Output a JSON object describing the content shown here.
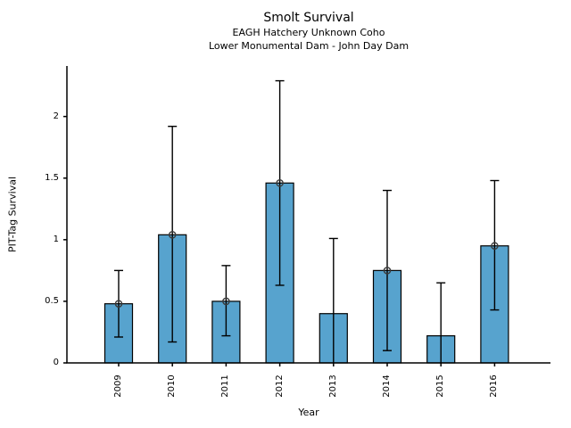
{
  "header": {
    "title": "Smolt Survival",
    "subtitle1": "EAGH Hatchery Unknown Coho",
    "subtitle2": "Lower Monumental Dam - John Day Dam"
  },
  "chart_data": {
    "type": "bar",
    "title": "Smolt Survival",
    "subtitle": [
      "EAGH Hatchery Unknown Coho",
      "Lower Monumental Dam - John Day Dam"
    ],
    "xlabel": "Year",
    "ylabel": "PIT-Tag Survival",
    "categories": [
      "2009",
      "2010",
      "2011",
      "2012",
      "2013",
      "2014",
      "2015",
      "2016"
    ],
    "values": [
      0.48,
      1.04,
      0.5,
      1.46,
      0.4,
      0.75,
      0.22,
      0.95
    ],
    "error_bar_low": [
      0.21,
      0.17,
      0.22,
      0.63,
      0.0,
      0.1,
      0.0,
      0.43
    ],
    "error_bar_high": [
      0.75,
      1.92,
      0.79,
      2.29,
      1.01,
      1.4,
      0.65,
      1.48
    ],
    "point_markers": [
      true,
      true,
      true,
      true,
      false,
      true,
      false,
      true
    ],
    "yticks": [
      0,
      0.5,
      1,
      1.5,
      2
    ],
    "ytick_labels": [
      "0",
      "0.5",
      "1",
      "1.5",
      "2"
    ],
    "ylim": [
      0,
      2.41
    ],
    "grid": false,
    "legend": null,
    "bar_color": "#57a3ce",
    "bar_edge_color": "#000000",
    "error_color": "#000000",
    "marker_edge_color": "#3a3a3a",
    "axis_color": "#000000"
  }
}
